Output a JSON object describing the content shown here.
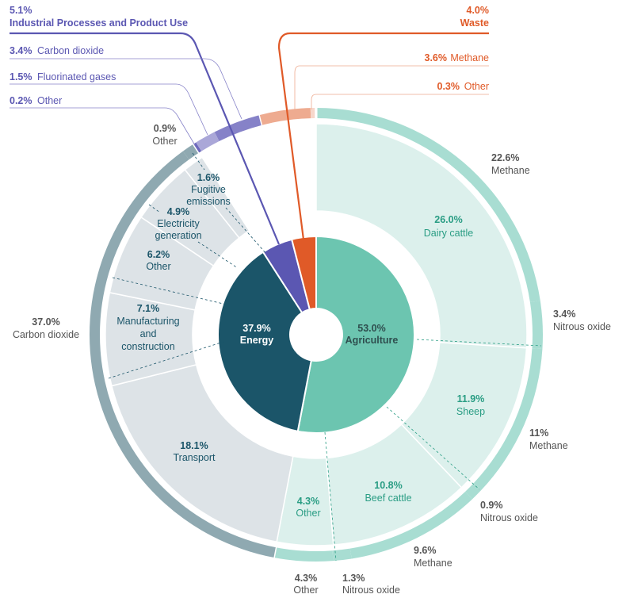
{
  "chart_data": {
    "type": "sunburst",
    "unit": "%",
    "sectors": [
      {
        "name": "Agriculture",
        "value": 53.0,
        "label": "53.0%",
        "color": "#6cc5b0",
        "band_color": "#dcf0ec",
        "ring_color": "#a8ddd2",
        "sources": [
          {
            "name": "Dairy cattle",
            "value": 26.0,
            "label": "26.0%"
          },
          {
            "name": "Sheep",
            "value": 11.9,
            "label": "11.9%"
          },
          {
            "name": "Beef cattle",
            "value": 10.8,
            "label": "10.8%"
          },
          {
            "name": "Other",
            "value": 4.3,
            "label": "4.3%"
          }
        ],
        "gases": [
          {
            "name": "Methane",
            "value": 22.6,
            "label": "22.6%"
          },
          {
            "name": "Nitrous oxide",
            "value": 3.4,
            "label": "3.4%"
          },
          {
            "name": "Methane",
            "value": 11,
            "label": "11%"
          },
          {
            "name": "Nitrous oxide",
            "value": 0.9,
            "label": "0.9%"
          },
          {
            "name": "Methane",
            "value": 9.6,
            "label": "9.6%"
          },
          {
            "name": "Nitrous oxide",
            "value": 1.3,
            "label": "1.3%"
          },
          {
            "name": "Other",
            "value": 4.3,
            "label": "4.3%"
          }
        ]
      },
      {
        "name": "Energy",
        "value": 37.9,
        "label": "37.9%",
        "color": "#1b5569",
        "band_color": "#dde3e7",
        "ring_color": "#8fa9b1",
        "sources": [
          {
            "name": "Transport",
            "value": 18.1,
            "label": "18.1%"
          },
          {
            "name": "Manufacturing and construction",
            "lines": [
              "Manufacturing",
              "and",
              "construction"
            ],
            "value": 7.1,
            "label": "7.1%"
          },
          {
            "name": "Other",
            "value": 6.2,
            "label": "6.2%"
          },
          {
            "name": "Electricity generation",
            "lines": [
              "Electricity",
              "generation"
            ],
            "value": 4.9,
            "label": "4.9%"
          },
          {
            "name": "Fugitive emissions",
            "lines": [
              "Fugitive",
              "emissions"
            ],
            "value": 1.6,
            "label": "1.6%"
          }
        ],
        "gases": [
          {
            "name": "Carbon dioxide",
            "value": 37.0,
            "label": "37.0%"
          },
          {
            "name": "Other",
            "value": 0.9,
            "label": "0.9%"
          }
        ]
      },
      {
        "name": "Industrial Processes and Product Use",
        "value": 5.1,
        "label": "5.1%",
        "color": "#5b57b2",
        "gases": [
          {
            "name": "Other",
            "value": 0.2,
            "label": "0.2%",
            "color": "#6d69bd"
          },
          {
            "name": "Fluorinated gases",
            "value": 1.5,
            "label": "1.5%",
            "color": "#aaa7d8"
          },
          {
            "name": "Carbon dioxide",
            "value": 3.4,
            "label": "3.4%",
            "color": "#8682c8"
          }
        ]
      },
      {
        "name": "Waste",
        "value": 4.0,
        "label": "4.0%",
        "color": "#e05a28",
        "gases": [
          {
            "name": "Methane",
            "value": 3.6,
            "label": "3.6%",
            "color": "#eeab90"
          },
          {
            "name": "Other",
            "value": 0.3,
            "label": "0.3%",
            "color": "#f7d7cb"
          }
        ]
      }
    ]
  }
}
